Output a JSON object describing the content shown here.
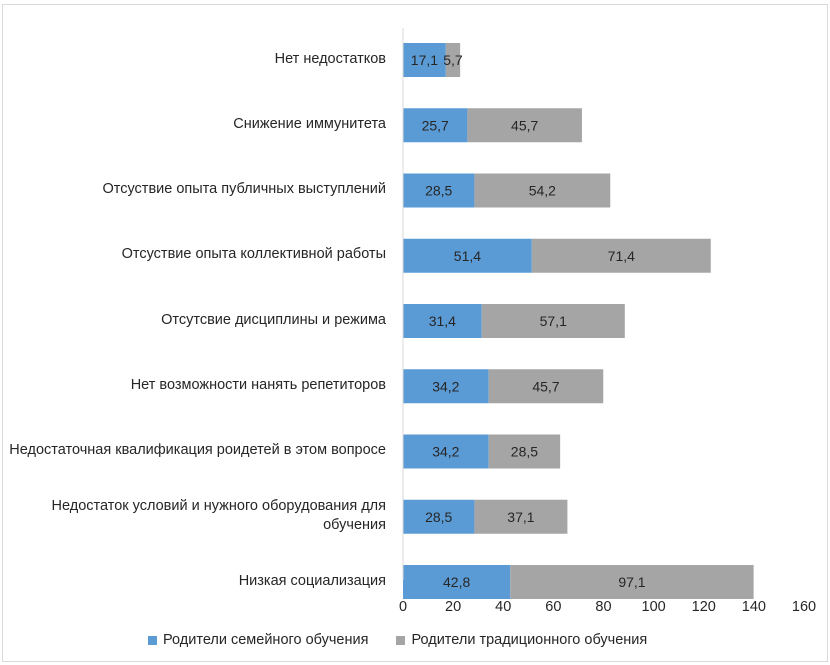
{
  "chart_data": {
    "type": "bar",
    "orientation": "horizontal",
    "stacked": true,
    "categories": [
      "Нет недостатков",
      "Снижение  иммунитета",
      "Отсуствие опыта публичных выступлений",
      "Отсуствие опыта коллективной работы",
      "Отсутсвие дисциплины и режима",
      "Нет возможности нанять репетиторов",
      "Недостаточная квалификация роидетей в этом вопросе",
      "Недостаток условий и нужного оборудования для обучения",
      "Низкая социализация"
    ],
    "series": [
      {
        "name": "Родители семейного обучения",
        "color": "#5b9bd5",
        "values": [
          17.1,
          25.7,
          28.5,
          51.4,
          31.4,
          34.2,
          34.2,
          28.5,
          42.8
        ],
        "labels": [
          "17,1",
          "25,7",
          "28,5",
          "51,4",
          "31,4",
          "34,2",
          "34,2",
          "28,5",
          "42,8"
        ]
      },
      {
        "name": "Родители традиционного обучения",
        "color": "#a5a5a5",
        "values": [
          5.7,
          45.7,
          54.2,
          71.4,
          57.1,
          45.7,
          28.5,
          37.1,
          97.1
        ],
        "labels": [
          "5,7",
          "45,7",
          "54,2",
          "71,4",
          "57,1",
          "45,7",
          "28,5",
          "37,1",
          "97,1"
        ]
      }
    ],
    "xlim": [
      0,
      160
    ],
    "xticks": [
      "0",
      "20",
      "40",
      "60",
      "80",
      "100",
      "120",
      "140",
      "160"
    ],
    "grid": false,
    "legend_position": "bottom"
  }
}
